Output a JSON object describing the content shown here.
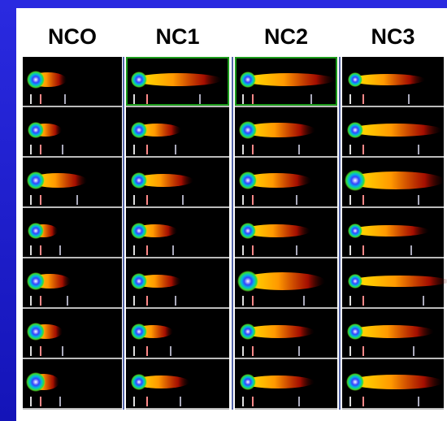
{
  "header": {
    "columns": [
      "NCO",
      "NC1",
      "NC2",
      "NC3"
    ]
  }
}
